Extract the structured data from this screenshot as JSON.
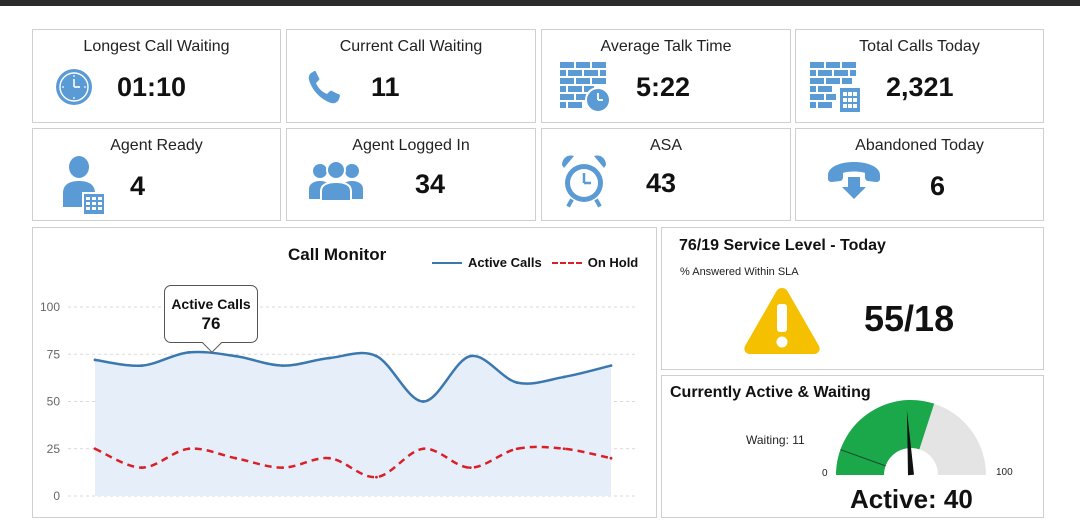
{
  "kpis": {
    "longest_call_waiting": {
      "label": "Longest Call Waiting",
      "value": "01:10"
    },
    "current_call_waiting": {
      "label": "Current Call Waiting",
      "value": "11"
    },
    "average_talk_time": {
      "label": "Average Talk Time",
      "value": "5:22"
    },
    "total_calls_today": {
      "label": "Total Calls Today",
      "value": "2,321"
    },
    "agent_ready": {
      "label": "Agent Ready",
      "value": "4"
    },
    "agent_logged_in": {
      "label": "Agent Logged In",
      "value": "34"
    },
    "asa": {
      "label": "ASA",
      "value": "43"
    },
    "abandoned_today": {
      "label": "Abandoned Today",
      "value": "6"
    }
  },
  "call_monitor": {
    "title": "Call Monitor",
    "legend": {
      "active": "Active Calls",
      "hold": "On Hold"
    },
    "tooltip": {
      "label": "Active Calls",
      "value": "76"
    },
    "y_ticks": [
      "0",
      "25",
      "50",
      "75",
      "100"
    ]
  },
  "service_level": {
    "title": "76/19 Service Level - Today",
    "subtitle": "% Answered Within SLA",
    "value": "55/18"
  },
  "active_waiting": {
    "title": "Currently Active & Waiting",
    "waiting_label": "Waiting:  11",
    "min": "0",
    "max": "100",
    "active_label": "Active: 40",
    "active_value": 40,
    "waiting_value": 11
  },
  "colors": {
    "icon_blue": "#5b9bd5",
    "active_line": "#3b78b0",
    "hold_line": "#d92027",
    "area_fill": "#e6eff9",
    "gauge_green": "#1aa84a",
    "gauge_grey": "#e4e4e4",
    "warning_yellow": "#f5c000"
  },
  "chart_data": {
    "type": "line",
    "x": [
      1,
      2,
      3,
      4,
      5,
      6,
      7,
      8,
      9,
      10,
      11,
      12
    ],
    "ylim": [
      0,
      100
    ],
    "yticks": [
      0,
      25,
      50,
      75,
      100
    ],
    "series": [
      {
        "name": "Active Calls",
        "values": [
          72,
          69,
          76,
          74,
          69,
          73,
          74,
          50,
          74,
          60,
          63,
          69
        ]
      },
      {
        "name": "On Hold",
        "values": [
          25,
          15,
          25,
          20,
          15,
          20,
          10,
          25,
          15,
          25,
          25,
          20
        ]
      }
    ]
  }
}
